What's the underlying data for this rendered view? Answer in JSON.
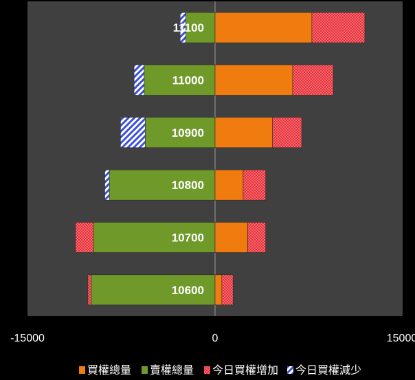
{
  "chart_data": {
    "type": "bar",
    "orientation": "horizontal",
    "stacked": true,
    "categories": [
      "10600",
      "10700",
      "10800",
      "10900",
      "11000",
      "11100"
    ],
    "series": [
      {
        "name": "買權總量",
        "color": "#f07c10",
        "pattern": "solid",
        "values": [
          600,
          2900,
          2500,
          5100,
          6900,
          8600
        ]
      },
      {
        "name": "賣權總量",
        "color": "#6f9a2a",
        "pattern": "solid",
        "values": [
          -11000,
          -10800,
          -9400,
          -6200,
          -6300,
          -2600
        ]
      },
      {
        "name": "今日買權增加",
        "color": "#e8303a",
        "pattern": "checker",
        "values": [
          1000,
          1600,
          2000,
          2600,
          3600,
          4700
        ]
      },
      {
        "name": "今日買權減少",
        "color": "#3b4fd8",
        "pattern": "diagonal",
        "values": [
          0,
          0,
          -400,
          -2200,
          -900,
          -500
        ]
      }
    ],
    "extra_negative": {
      "10600": -300,
      "10700": -1600
    },
    "xlim": [
      -15000,
      15000
    ],
    "xticks": [
      "-15000",
      "0",
      "15000"
    ],
    "legend_position": "bottom",
    "grid": false
  }
}
